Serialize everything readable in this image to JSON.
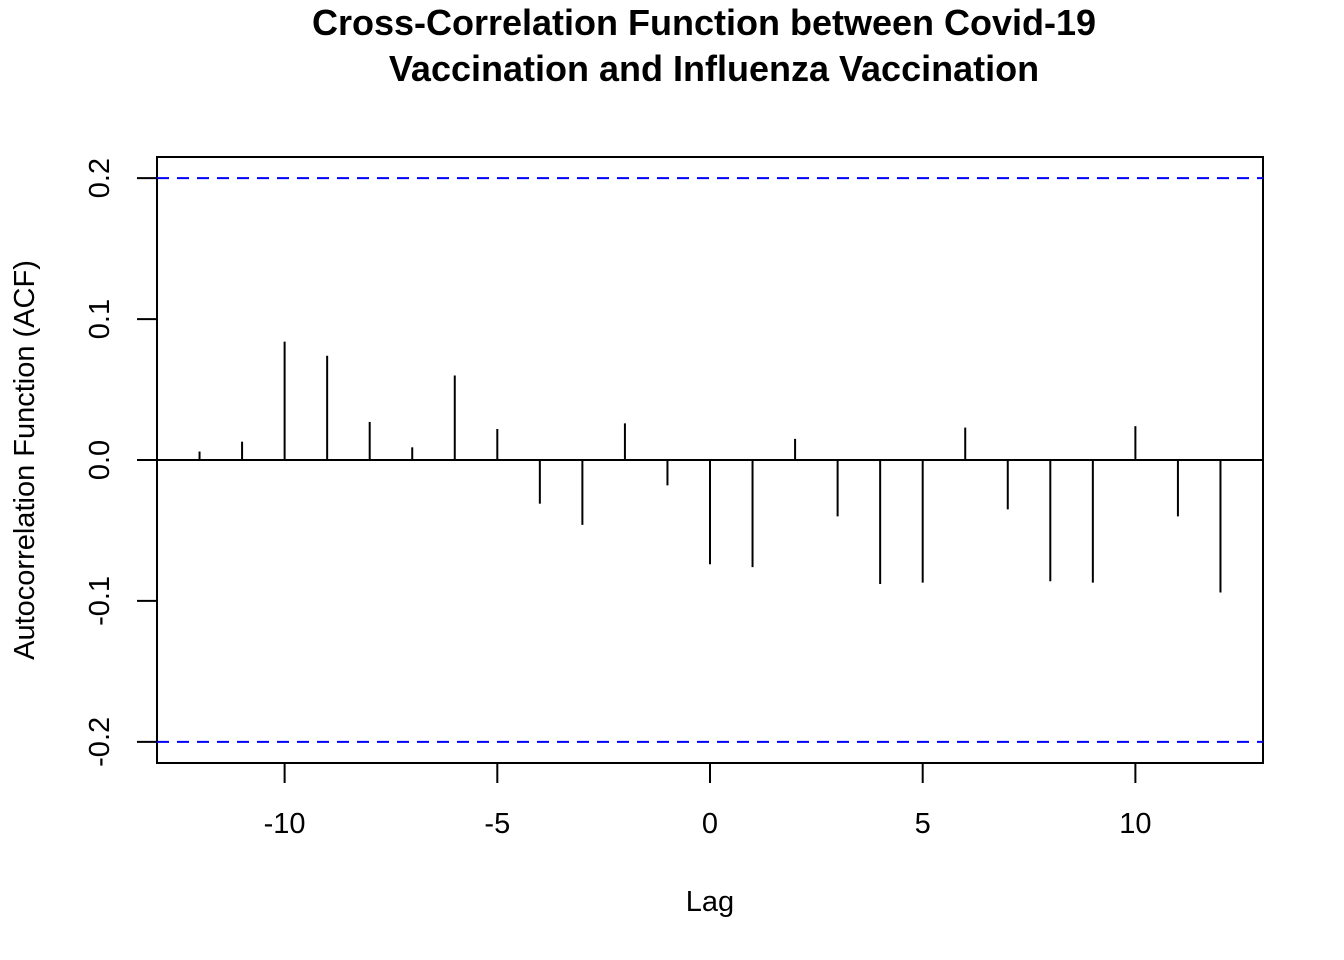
{
  "chart_data": {
    "type": "bar",
    "title_lines": [
      "Cross-Correlation Function between Covid-19",
      "Vaccination and Influenza Vaccination"
    ],
    "xlabel": "Lag",
    "ylabel": "Autocorrelation Function (ACF)",
    "xlim": [
      -13,
      13
    ],
    "ylim": [
      -0.215,
      0.215
    ],
    "x_ticks": [
      -10,
      -5,
      0,
      5,
      10
    ],
    "x_tick_labels": [
      "-10",
      "-5",
      "0",
      "5",
      "10"
    ],
    "y_ticks": [
      0.2,
      0.1,
      0.0,
      -0.1,
      -0.2
    ],
    "y_tick_labels": [
      "0.2",
      "0.1",
      "0.0",
      "-0.1",
      "-0.2"
    ],
    "confidence_bounds": [
      0.2,
      -0.2
    ],
    "confidence_color": "#0000ff",
    "grid": false,
    "x": [
      -12,
      -11,
      -10,
      -9,
      -8,
      -7,
      -6,
      -5,
      -4,
      -3,
      -2,
      -1,
      0,
      1,
      2,
      3,
      4,
      5,
      6,
      7,
      8,
      9,
      10,
      11,
      12
    ],
    "values": [
      0.006,
      0.013,
      0.084,
      0.074,
      0.027,
      0.009,
      0.06,
      0.022,
      -0.031,
      -0.046,
      0.026,
      -0.018,
      -0.074,
      -0.076,
      0.015,
      -0.04,
      -0.088,
      -0.087,
      0.023,
      -0.035,
      -0.086,
      -0.087,
      0.024,
      -0.04,
      -0.094
    ]
  }
}
